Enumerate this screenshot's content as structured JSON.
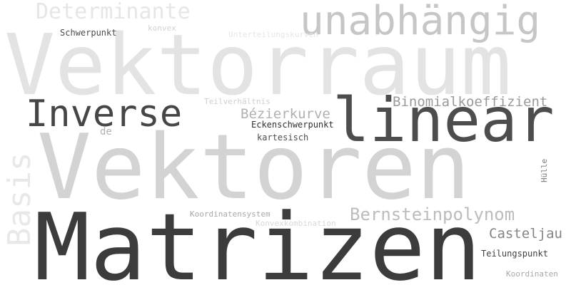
{
  "words": {
    "vektorraum": {
      "text": "Vektorraum",
      "color": "#e3e3e3"
    },
    "vektoren": {
      "text": "Vektoren",
      "color": "#d3d3d3"
    },
    "matrizen": {
      "text": "Matrizen",
      "color": "#3c3c3c"
    },
    "linear": {
      "text": "linear",
      "color": "#4d4d4d"
    },
    "inverse": {
      "text": "Inverse",
      "color": "#464646"
    },
    "unabhaengig": {
      "text": "unabhängig",
      "color": "#c6c6c6"
    },
    "determinante": {
      "text": "Determinante",
      "color": "#e6e6e6"
    },
    "basis": {
      "text": "Basis",
      "color": "#e8e8e8"
    },
    "bernsteinpolynom": {
      "text": "Bernsteinpolynom",
      "color": "#bcbcbc"
    },
    "binomialkoeffizient": {
      "text": "Binomialkoeffizient",
      "color": "#9a9a9a"
    },
    "bezierkurve": {
      "text": "Bézierkurve",
      "color": "#b0b0b0"
    },
    "casteljau": {
      "text": "Casteljau",
      "color": "#858585"
    },
    "schwerpunkt": {
      "text": "Schwerpunkt",
      "color": "#4a4a4a"
    },
    "konvex": {
      "text": "konvex",
      "color": "#d2d2d2"
    },
    "unterteilungskurven": {
      "text": "Unterteilungskurven",
      "color": "#e6e6e6"
    },
    "teilverhaeltnis": {
      "text": "Teilverhältnis",
      "color": "#cfcfcf"
    },
    "de": {
      "text": "de",
      "color": "#b0b0b0"
    },
    "eckenschwerpunkt": {
      "text": "Eckenschwerpunkt",
      "color": "#2e2e2e"
    },
    "kartesisch": {
      "text": "kartesisch",
      "color": "#4d4d4d"
    },
    "huelle": {
      "text": "Hülle",
      "color": "#7a7a7a"
    },
    "koordinatensystem": {
      "text": "Koordinatensystem",
      "color": "#a8a8a8"
    },
    "konvexkombination": {
      "text": "Konvexkombination",
      "color": "#d8d8d8"
    },
    "teilungspunkt": {
      "text": "Teilungspunkt",
      "color": "#3f3f3f"
    },
    "koordinaten": {
      "text": "Koordinaten",
      "color": "#a8a8a8"
    }
  }
}
